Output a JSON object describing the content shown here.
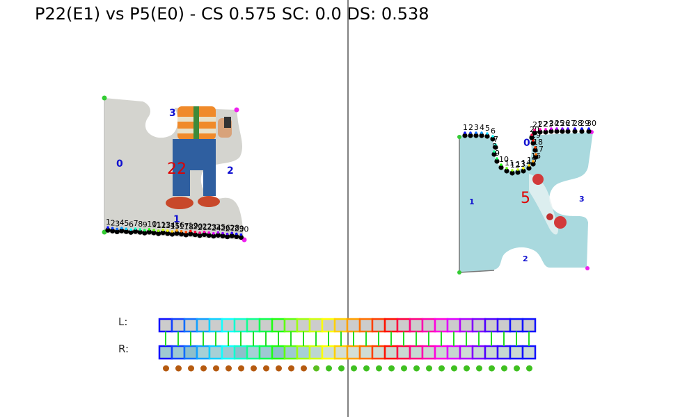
{
  "title": "P22(E1) vs P5(E0) - CS 0.575 SC: 0.0 DS: 0.538",
  "left_piece": {
    "id": "22",
    "edge_labels": [
      "0",
      "1",
      "2",
      "3"
    ],
    "point_labels": [
      "1",
      "2",
      "3",
      "4",
      "5",
      "6",
      "7",
      "8",
      "9",
      "10",
      "11",
      "12",
      "13",
      "14",
      "15",
      "16",
      "17",
      "18",
      "19",
      "20",
      "21",
      "22",
      "23",
      "24",
      "25",
      "26",
      "27",
      "28",
      "29",
      "30"
    ]
  },
  "right_piece": {
    "id": "5",
    "edge_labels": [
      "0",
      "1",
      "2",
      "3"
    ],
    "point_labels": [
      "1",
      "2",
      "3",
      "4",
      "5",
      "6",
      "7",
      "8",
      "9",
      "10",
      "11",
      "12",
      "13",
      "14",
      "15",
      "16",
      "17",
      "18",
      "19",
      "20",
      "21",
      "22",
      "23",
      "24",
      "25",
      "26",
      "27",
      "28",
      "29",
      "30"
    ]
  },
  "strip": {
    "left_label": "L:",
    "right_label": "R:",
    "cell_count": 30,
    "cell_colors": [
      "#1010ff",
      "#1040ff",
      "#1070ff",
      "#10a0ff",
      "#10d0ff",
      "#10ffff",
      "#10ffd0",
      "#10ff90",
      "#10ff50",
      "#20ff10",
      "#60ff10",
      "#a0ff10",
      "#d0ff10",
      "#ffff00",
      "#ffd000",
      "#ffa000",
      "#ff7000",
      "#ff4000",
      "#ff1000",
      "#ff0040",
      "#ff0080",
      "#ff00b0",
      "#ff00e0",
      "#e000ff",
      "#b000ff",
      "#8000ff",
      "#5000ff",
      "#3000ff",
      "#1010ff",
      "#1010ff"
    ],
    "left_fill": "#cccccc",
    "right_fills": [
      "#9ec9d2",
      "#9ec9d2",
      "#8dbfcb",
      "#a6d0d6",
      "#a6d0d6",
      "#9ec9d2",
      "#8dbfcb",
      "#a6d0d6",
      "#9ec9d2",
      "#8dbfcb",
      "#9ec9d2",
      "#a6d0d6",
      "#bcd6d0",
      "#cfded6",
      "#d4ded4",
      "#d4ded4",
      "#cfdcd4",
      "#cfdcd4",
      "#cad9d2",
      "#cad9d2",
      "#c6d8d2",
      "#cad9d2",
      "#cad9d2",
      "#c6d6d0",
      "#cfdcd4",
      "#cad9d2",
      "#cad9d2",
      "#c6d8d2",
      "#cad9d2",
      "#cad9d2"
    ],
    "connector_color": "#22dd22",
    "match_dot_colors": [
      "#b55a10",
      "#b55a10",
      "#b55a10",
      "#b55a10",
      "#b55a10",
      "#b55a10",
      "#b55a10",
      "#b55a10",
      "#b55a10",
      "#b55a10",
      "#b55a10",
      "#b55a10",
      "#5bbf20",
      "#3fc020",
      "#3fc020",
      "#3fc020",
      "#3fc020",
      "#3fc020",
      "#3fc020",
      "#3fc020",
      "#3fc020",
      "#3fc020",
      "#3fc020",
      "#3fc020",
      "#3fc020",
      "#3fc020",
      "#3fc020",
      "#3fc020",
      "#3fc020",
      "#3fc020"
    ]
  },
  "colors": {
    "divider": "#808080",
    "edge_label": "#1010d0",
    "piece_id": "#e00000",
    "corner_green": "#33cc33",
    "corner_magenta": "#ee22ee",
    "left_piece_bg": "#d4d4cf",
    "right_piece_bg": "#a9d9de"
  }
}
